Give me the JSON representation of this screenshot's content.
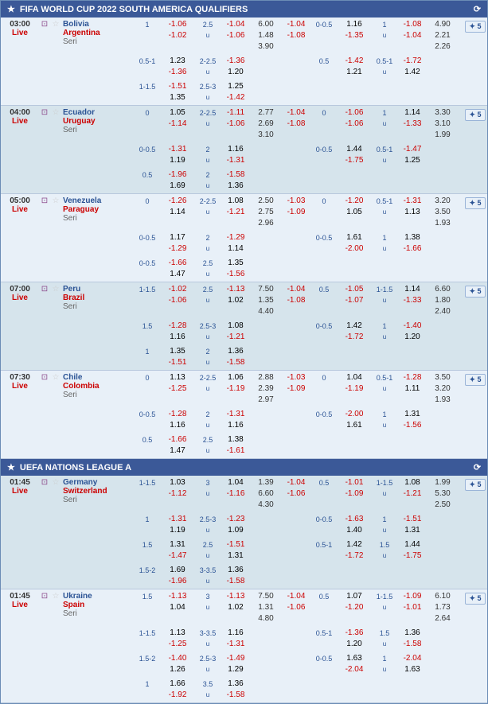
{
  "leagues": [
    {
      "title": "FIFA WORLD CUP 2022 SOUTH AMERICA QUALIFIERS",
      "bg": "bg-a",
      "matches": [
        {
          "time": "03:00",
          "live": "Live",
          "home": "Bolivia",
          "away": "Argentina",
          "r1": {
            "hdp1": "1",
            "v1a": "-1.06",
            "v1b": "-1.02",
            "sc1": "2.5",
            "ov1a": "-1.04",
            "ov1b": "-1.06",
            "m1": "6.00",
            "m2": "1.48",
            "m3": "3.90",
            "ou1": "-1.04",
            "ou2": "-1.08",
            "hdp2": "0-0.5",
            "v2a": "1.16",
            "v2b": "-1.35",
            "sc2": "1",
            "ov2a": "-1.08",
            "ov2b": "-1.04",
            "e1": "4.90",
            "e2": "2.21",
            "e3": "2.26"
          },
          "subs": [
            {
              "h1": "0.5-1",
              "a": "1.23",
              "b": "-1.36",
              "s1": "2-2.5",
              "c": "-1.36",
              "d": "1.20",
              "h2": "0.5",
              "e": "-1.42",
              "f": "1.21",
              "s2": "0.5-1",
              "g": "-1.72",
              "i": "1.42"
            },
            {
              "h1": "1-1.5",
              "a": "-1.51",
              "b": "1.35",
              "s1": "2.5-3",
              "c": "1.25",
              "d": "-1.42"
            }
          ]
        },
        {
          "time": "04:00",
          "live": "Live",
          "home": "Ecuador",
          "away": "Uruguay",
          "bg": "bg-b",
          "r1": {
            "hdp1": "0",
            "v1a": "1.05",
            "v1b": "-1.14",
            "sc1": "2-2.5",
            "ov1a": "-1.11",
            "ov1b": "-1.06",
            "m1": "2.77",
            "m2": "2.69",
            "m3": "3.10",
            "ou1": "-1.04",
            "ou2": "-1.08",
            "hdp2": "0",
            "v2a": "-1.06",
            "v2b": "-1.06",
            "sc2": "1",
            "ov2a": "1.14",
            "ov2b": "-1.33",
            "e1": "3.30",
            "e2": "3.10",
            "e3": "1.99"
          },
          "subs": [
            {
              "h1": "0-0.5",
              "a": "-1.31",
              "b": "1.19",
              "s1": "2",
              "c": "1.16",
              "d": "-1.31",
              "h2": "0-0.5",
              "e": "1.44",
              "f": "-1.75",
              "s2": "0.5-1",
              "g": "-1.47",
              "i": "1.25"
            },
            {
              "h1": "0.5",
              "a": "-1.96",
              "b": "1.69",
              "s1": "2",
              "c": "-1.58",
              "d": "1.36"
            }
          ]
        },
        {
          "time": "05:00",
          "live": "Live",
          "home": "Venezuela",
          "away": "Paraguay",
          "r1": {
            "hdp1": "0",
            "v1a": "-1.26",
            "v1b": "1.14",
            "sc1": "2-2.5",
            "ov1a": "1.08",
            "ov1b": "-1.21",
            "m1": "2.50",
            "m2": "2.75",
            "m3": "2.96",
            "ou1": "-1.03",
            "ou2": "-1.09",
            "hdp2": "0",
            "v2a": "-1.20",
            "v2b": "1.05",
            "sc2": "0.5-1",
            "ov2a": "-1.31",
            "ov2b": "1.13",
            "e1": "3.20",
            "e2": "3.50",
            "e3": "1.93"
          },
          "subs": [
            {
              "h1": "0-0.5",
              "a": "1.17",
              "b": "-1.29",
              "s1": "2",
              "c": "-1.29",
              "d": "1.14",
              "h2": "0-0.5",
              "e": "1.61",
              "f": "-2.00",
              "s2": "1",
              "g": "1.38",
              "i": "-1.66"
            },
            {
              "h1": "0-0.5",
              "a": "-1.66",
              "b": "1.47",
              "s1": "2.5",
              "c": "1.35",
              "d": "-1.56"
            }
          ]
        },
        {
          "time": "07:00",
          "live": "Live",
          "home": "Peru",
          "away": "Brazil",
          "bg": "bg-b",
          "r1": {
            "hdp1": "1-1.5",
            "v1a": "-1.02",
            "v1b": "-1.06",
            "sc1": "2.5",
            "ov1a": "-1.13",
            "ov1b": "1.02",
            "m1": "7.50",
            "m2": "1.35",
            "m3": "4.40",
            "ou1": "-1.04",
            "ou2": "-1.08",
            "hdp2": "0.5",
            "v2a": "-1.05",
            "v2b": "-1.07",
            "sc2": "1-1.5",
            "ov2a": "1.14",
            "ov2b": "-1.33",
            "e1": "6.60",
            "e2": "1.80",
            "e3": "2.40"
          },
          "subs": [
            {
              "h1": "1.5",
              "a": "-1.28",
              "b": "1.16",
              "s1": "2.5-3",
              "c": "1.08",
              "d": "-1.21",
              "h2": "0-0.5",
              "e": "1.42",
              "f": "-1.72",
              "s2": "1",
              "g": "-1.40",
              "i": "1.20"
            },
            {
              "h1": "1",
              "a": "1.35",
              "b": "-1.51",
              "s1": "2",
              "c": "1.36",
              "d": "-1.58"
            }
          ]
        },
        {
          "time": "07:30",
          "live": "Live",
          "home": "Chile",
          "away": "Colombia",
          "r1": {
            "hdp1": "0",
            "v1a": "1.13",
            "v1b": "-1.25",
            "sc1": "2-2.5",
            "ov1a": "1.06",
            "ov1b": "-1.19",
            "m1": "2.88",
            "m2": "2.39",
            "m3": "2.97",
            "ou1": "-1.03",
            "ou2": "-1.09",
            "hdp2": "0",
            "v2a": "1.04",
            "v2b": "-1.19",
            "sc2": "0.5-1",
            "ov2a": "-1.28",
            "ov2b": "1.11",
            "e1": "3.50",
            "e2": "3.20",
            "e3": "1.93"
          },
          "subs": [
            {
              "h1": "0-0.5",
              "a": "-1.28",
              "b": "1.16",
              "s1": "2",
              "c": "-1.31",
              "d": "1.16",
              "h2": "0-0.5",
              "e": "-2.00",
              "f": "1.61",
              "s2": "1",
              "g": "1.31",
              "i": "-1.56"
            },
            {
              "h1": "0.5",
              "a": "-1.66",
              "b": "1.47",
              "s1": "2.5",
              "c": "1.38",
              "d": "-1.61"
            }
          ]
        }
      ]
    },
    {
      "title": "UEFA NATIONS LEAGUE A",
      "bg": "bg-b",
      "matches": [
        {
          "time": "01:45",
          "live": "Live",
          "home": "Germany",
          "away": "Switzerland",
          "r1": {
            "hdp1": "1-1.5",
            "v1a": "1.03",
            "v1b": "-1.12",
            "sc1": "3",
            "ov1a": "1.04",
            "ov1b": "-1.16",
            "m1": "1.39",
            "m2": "6.60",
            "m3": "4.30",
            "ou1": "-1.04",
            "ou2": "-1.06",
            "hdp2": "0.5",
            "v2a": "-1.01",
            "v2b": "-1.09",
            "sc2": "1-1.5",
            "ov2a": "1.08",
            "ov2b": "-1.21",
            "e1": "1.99",
            "e2": "5.30",
            "e3": "2.50"
          },
          "subs": [
            {
              "h1": "1",
              "a": "-1.31",
              "b": "1.19",
              "s1": "2.5-3",
              "c": "-1.23",
              "d": "1.09",
              "h2": "0-0.5",
              "e": "-1.63",
              "f": "1.40",
              "s2": "1",
              "g": "-1.51",
              "i": "1.31"
            },
            {
              "h1": "1.5",
              "a": "1.31",
              "b": "-1.47",
              "s1": "2.5",
              "c": "-1.51",
              "d": "1.31",
              "h2": "0.5-1",
              "e": "1.42",
              "f": "-1.72",
              "s2": "1.5",
              "g": "1.44",
              "i": "-1.75"
            },
            {
              "h1": "1.5-2",
              "a": "1.69",
              "b": "-1.96",
              "s1": "3-3.5",
              "c": "1.36",
              "d": "-1.58"
            }
          ]
        },
        {
          "time": "01:45",
          "live": "Live",
          "home": "Ukraine",
          "away": "Spain",
          "bg": "bg-a",
          "r1": {
            "hdp1": "1.5",
            "v1a": "-1.13",
            "v1b": "1.04",
            "sc1": "3",
            "ov1a": "-1.13",
            "ov1b": "1.02",
            "m1": "7.50",
            "m2": "1.31",
            "m3": "4.80",
            "ou1": "-1.04",
            "ou2": "-1.06",
            "hdp2": "0.5",
            "v2a": "1.07",
            "v2b": "-1.20",
            "sc2": "1-1.5",
            "ov2a": "-1.09",
            "ov2b": "-1.01",
            "e1": "6.10",
            "e2": "1.73",
            "e3": "2.64"
          },
          "subs": [
            {
              "h1": "1-1.5",
              "a": "1.13",
              "b": "-1.25",
              "s1": "3-3.5",
              "c": "1.16",
              "d": "-1.31",
              "h2": "0.5-1",
              "e": "-1.36",
              "f": "1.20",
              "s2": "1.5",
              "g": "1.36",
              "i": "-1.58"
            },
            {
              "h1": "1.5-2",
              "a": "-1.40",
              "b": "1.26",
              "s1": "2.5-3",
              "c": "-1.49",
              "d": "1.29",
              "h2": "0-0.5",
              "e": "1.63",
              "f": "-2.04",
              "s2": "1",
              "g": "-2.04",
              "i": "1.63"
            },
            {
              "h1": "1",
              "a": "1.66",
              "b": "-1.92",
              "s1": "3.5",
              "c": "1.36",
              "d": "-1.58"
            }
          ]
        }
      ]
    }
  ]
}
